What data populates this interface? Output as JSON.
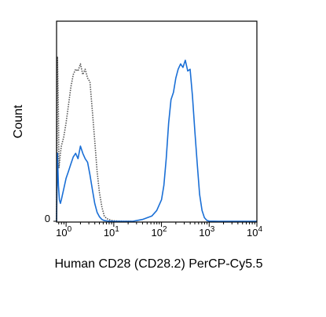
{
  "chart_data": {
    "type": "line",
    "title": "",
    "xlabel": "Human CD28 (CD28.2) PerCP-Cy5.5",
    "ylabel": "Count",
    "xscale": "log",
    "xlim_exp": [
      -0.2,
      4
    ],
    "x_ticks": [
      {
        "base": "10",
        "exp": "0",
        "value": 1
      },
      {
        "base": "10",
        "exp": "1",
        "value": 10
      },
      {
        "base": "10",
        "exp": "2",
        "value": 100
      },
      {
        "base": "10",
        "exp": "3",
        "value": 1000
      },
      {
        "base": "10",
        "exp": "4",
        "value": 10000
      }
    ],
    "y_ticks": [
      {
        "label": "0",
        "value": 0
      }
    ],
    "ylim": [
      0,
      100
    ],
    "grid": false,
    "series": [
      {
        "style": "dotted",
        "color": "#555555",
        "log10x": [
          -0.2,
          -0.18,
          -0.16,
          -0.15,
          -0.14,
          -0.12,
          -0.1,
          -0.05,
          0,
          0.05,
          0.1,
          0.15,
          0.2,
          0.25,
          0.3,
          0.35,
          0.4,
          0.45,
          0.5,
          0.55,
          0.6,
          0.65,
          0.7,
          0.75,
          0.8,
          0.85,
          0.9,
          0.95,
          1.0,
          1.05,
          1.1,
          1.2,
          1.3,
          1.4
        ],
        "y": [
          0,
          92,
          60,
          30,
          32,
          38,
          42,
          47,
          55,
          65,
          75,
          82,
          85,
          84,
          88,
          82,
          85,
          80,
          78,
          62,
          45,
          28,
          16,
          8,
          3,
          1.5,
          1,
          0.5,
          0.3,
          0.2,
          0.1,
          0,
          0,
          0
        ]
      },
      {
        "style": "solid",
        "color": "#1a6fd6",
        "log10x": [
          -0.2,
          -0.18,
          -0.16,
          -0.14,
          -0.12,
          -0.1,
          -0.05,
          0,
          0.05,
          0.1,
          0.15,
          0.2,
          0.25,
          0.3,
          0.35,
          0.4,
          0.45,
          0.5,
          0.55,
          0.6,
          0.65,
          0.7,
          0.75,
          0.8,
          0.85,
          0.9,
          0.95,
          1.0,
          1.2,
          1.4,
          1.6,
          1.8,
          1.9,
          2.0,
          2.05,
          2.1,
          2.15,
          2.2,
          2.25,
          2.3,
          2.35,
          2.4,
          2.45,
          2.5,
          2.55,
          2.6,
          2.65,
          2.7,
          2.75,
          2.8,
          2.85,
          2.9,
          2.95,
          3.0,
          3.2,
          3.5,
          4.0
        ],
        "y": [
          0,
          38,
          20,
          12,
          10,
          12,
          18,
          24,
          28,
          32,
          36,
          38,
          35,
          42,
          38,
          35,
          33,
          26,
          18,
          10,
          5,
          2.5,
          1,
          0.4,
          0.2,
          0.1,
          0.05,
          0,
          0,
          0,
          1,
          3,
          6,
          12,
          20,
          35,
          55,
          68,
          72,
          80,
          85,
          88,
          86,
          90,
          84,
          85,
          70,
          50,
          32,
          15,
          6,
          2,
          0.5,
          0.1,
          0,
          0,
          0
        ]
      }
    ]
  }
}
